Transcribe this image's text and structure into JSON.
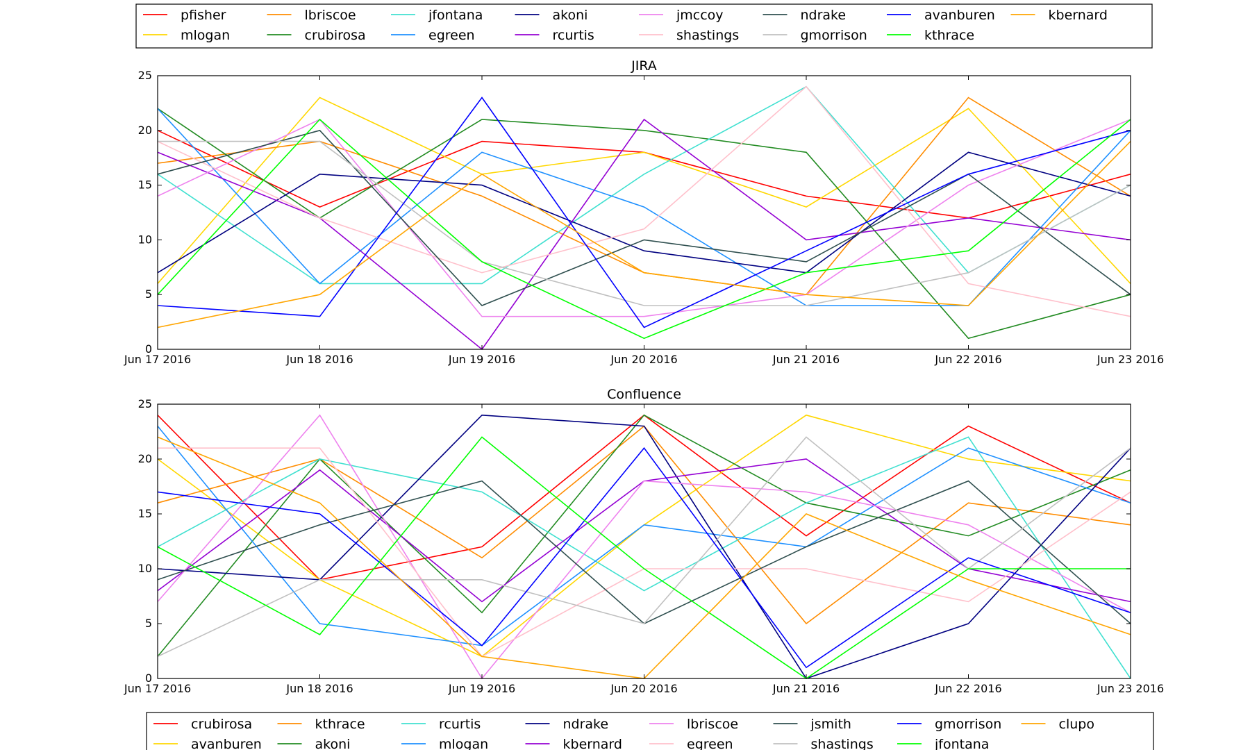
{
  "chart_data": [
    {
      "type": "line",
      "title": "JIRA",
      "x": [
        "Jun 17 2016",
        "Jun 18 2016",
        "Jun 19 2016",
        "Jun 20 2016",
        "Jun 21 2016",
        "Jun 22 2016",
        "Jun 23 2016"
      ],
      "ylim": [
        0,
        25
      ],
      "yticks": [
        0,
        5,
        10,
        15,
        20,
        25
      ],
      "legend_position": "top",
      "grid": false,
      "series": [
        {
          "name": "pfisher",
          "color": "#ff0000",
          "values": [
            20,
            13,
            19,
            18,
            14,
            12,
            16
          ]
        },
        {
          "name": "mlogan",
          "color": "#ffd700",
          "values": [
            6,
            23,
            16,
            18,
            13,
            22,
            6
          ]
        },
        {
          "name": "lbriscoe",
          "color": "#ff8c00",
          "values": [
            17,
            19,
            14,
            7,
            5,
            23,
            14
          ]
        },
        {
          "name": "crubirosa",
          "color": "#228b22",
          "values": [
            22,
            12,
            21,
            20,
            18,
            1,
            5
          ]
        },
        {
          "name": "jfontana",
          "color": "#40e0d0",
          "values": [
            16,
            6,
            6,
            16,
            24,
            7,
            15
          ]
        },
        {
          "name": "egreen",
          "color": "#1e90ff",
          "values": [
            22,
            6,
            18,
            13,
            4,
            4,
            20
          ]
        },
        {
          "name": "akoni",
          "color": "#000080",
          "values": [
            7,
            16,
            15,
            9,
            7,
            18,
            14
          ]
        },
        {
          "name": "rcurtis",
          "color": "#9400d3",
          "values": [
            18,
            12,
            0,
            21,
            10,
            12,
            10
          ]
        },
        {
          "name": "jmccoy",
          "color": "#ee82ee",
          "values": [
            14,
            21,
            3,
            3,
            5,
            15,
            21
          ]
        },
        {
          "name": "shastings",
          "color": "#ffc0cb",
          "values": [
            19,
            12,
            7,
            11,
            24,
            6,
            3
          ]
        },
        {
          "name": "ndrake",
          "color": "#2f4f4f",
          "values": [
            16,
            20,
            4,
            10,
            8,
            16,
            5
          ]
        },
        {
          "name": "gmorrison",
          "color": "#c0c0c0",
          "values": [
            19,
            19,
            8,
            4,
            4,
            7,
            15
          ]
        },
        {
          "name": "avanburen",
          "color": "#0000ff",
          "values": [
            4,
            3,
            23,
            2,
            9,
            16,
            20
          ]
        },
        {
          "name": "kthrace",
          "color": "#00ff00",
          "values": [
            5,
            21,
            8,
            1,
            7,
            9,
            21
          ]
        },
        {
          "name": "kbernard",
          "color": "#ffa500",
          "values": [
            2,
            5,
            16,
            7,
            5,
            4,
            19
          ]
        }
      ]
    },
    {
      "type": "line",
      "title": "Confluence",
      "x": [
        "Jun 17 2016",
        "Jun 18 2016",
        "Jun 19 2016",
        "Jun 20 2016",
        "Jun 21 2016",
        "Jun 22 2016",
        "Jun 23 2016"
      ],
      "ylim": [
        0,
        25
      ],
      "yticks": [
        0,
        5,
        10,
        15,
        20,
        25
      ],
      "legend_position": "bottom",
      "grid": false,
      "series": [
        {
          "name": "crubirosa",
          "color": "#ff0000",
          "values": [
            24,
            9,
            12,
            24,
            13,
            23,
            16
          ]
        },
        {
          "name": "avanburen",
          "color": "#ffd700",
          "values": [
            20,
            9,
            2,
            14,
            24,
            20,
            18
          ]
        },
        {
          "name": "kthrace",
          "color": "#ff8c00",
          "values": [
            16,
            20,
            11,
            23,
            5,
            16,
            14
          ]
        },
        {
          "name": "akoni",
          "color": "#228b22",
          "values": [
            2,
            20,
            6,
            24,
            16,
            13,
            19
          ]
        },
        {
          "name": "rcurtis",
          "color": "#40e0d0",
          "values": [
            12,
            20,
            17,
            8,
            16,
            22,
            0
          ]
        },
        {
          "name": "mlogan",
          "color": "#1e90ff",
          "values": [
            23,
            5,
            3,
            14,
            12,
            21,
            16
          ]
        },
        {
          "name": "ndrake",
          "color": "#000080",
          "values": [
            10,
            9,
            24,
            23,
            0,
            5,
            21
          ]
        },
        {
          "name": "kbernard",
          "color": "#9400d3",
          "values": [
            8,
            19,
            7,
            18,
            20,
            10,
            7
          ]
        },
        {
          "name": "lbriscoe",
          "color": "#ee82ee",
          "values": [
            7,
            24,
            0,
            18,
            17,
            14,
            6
          ]
        },
        {
          "name": "egreen",
          "color": "#ffc0cb",
          "values": [
            21,
            21,
            2,
            10,
            10,
            7,
            17
          ]
        },
        {
          "name": "jsmith",
          "color": "#2f4f4f",
          "values": [
            9,
            14,
            18,
            5,
            12,
            18,
            5
          ]
        },
        {
          "name": "shastings",
          "color": "#c0c0c0",
          "values": [
            2,
            9,
            9,
            5,
            22,
            10,
            21
          ]
        },
        {
          "name": "gmorrison",
          "color": "#0000ff",
          "values": [
            17,
            15,
            3,
            21,
            1,
            11,
            6
          ]
        },
        {
          "name": "jfontana",
          "color": "#00ff00",
          "values": [
            12,
            4,
            22,
            10,
            0,
            10,
            10
          ]
        },
        {
          "name": "clupo",
          "color": "#ffa500",
          "values": [
            22,
            16,
            2,
            0,
            15,
            9,
            4
          ]
        }
      ]
    }
  ]
}
